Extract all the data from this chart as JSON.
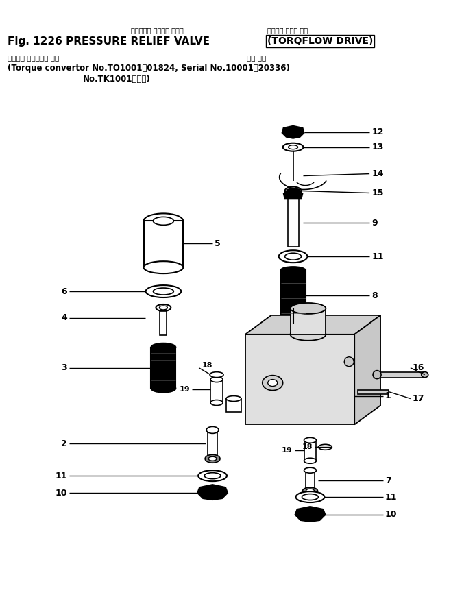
{
  "title_jp1": "プレッシャ リリーフ バルブ",
  "title_en1": "Fig. 1226 PRESSURE RELIEF VALVE",
  "title_jp2": "（トルク フロー 式）",
  "title_en2": "(TORQFLOW DRIVE)",
  "sub_jp": "（トルク コンバータ 号機",
  "sub_en1": "(Torque convertor No.TO1001～01824, Serial No.10001～20336)",
  "sub_jp2": "適用 号機",
  "sub_en2": "No.TK1001～．　)",
  "bg": "#ffffff",
  "black": "#000000"
}
